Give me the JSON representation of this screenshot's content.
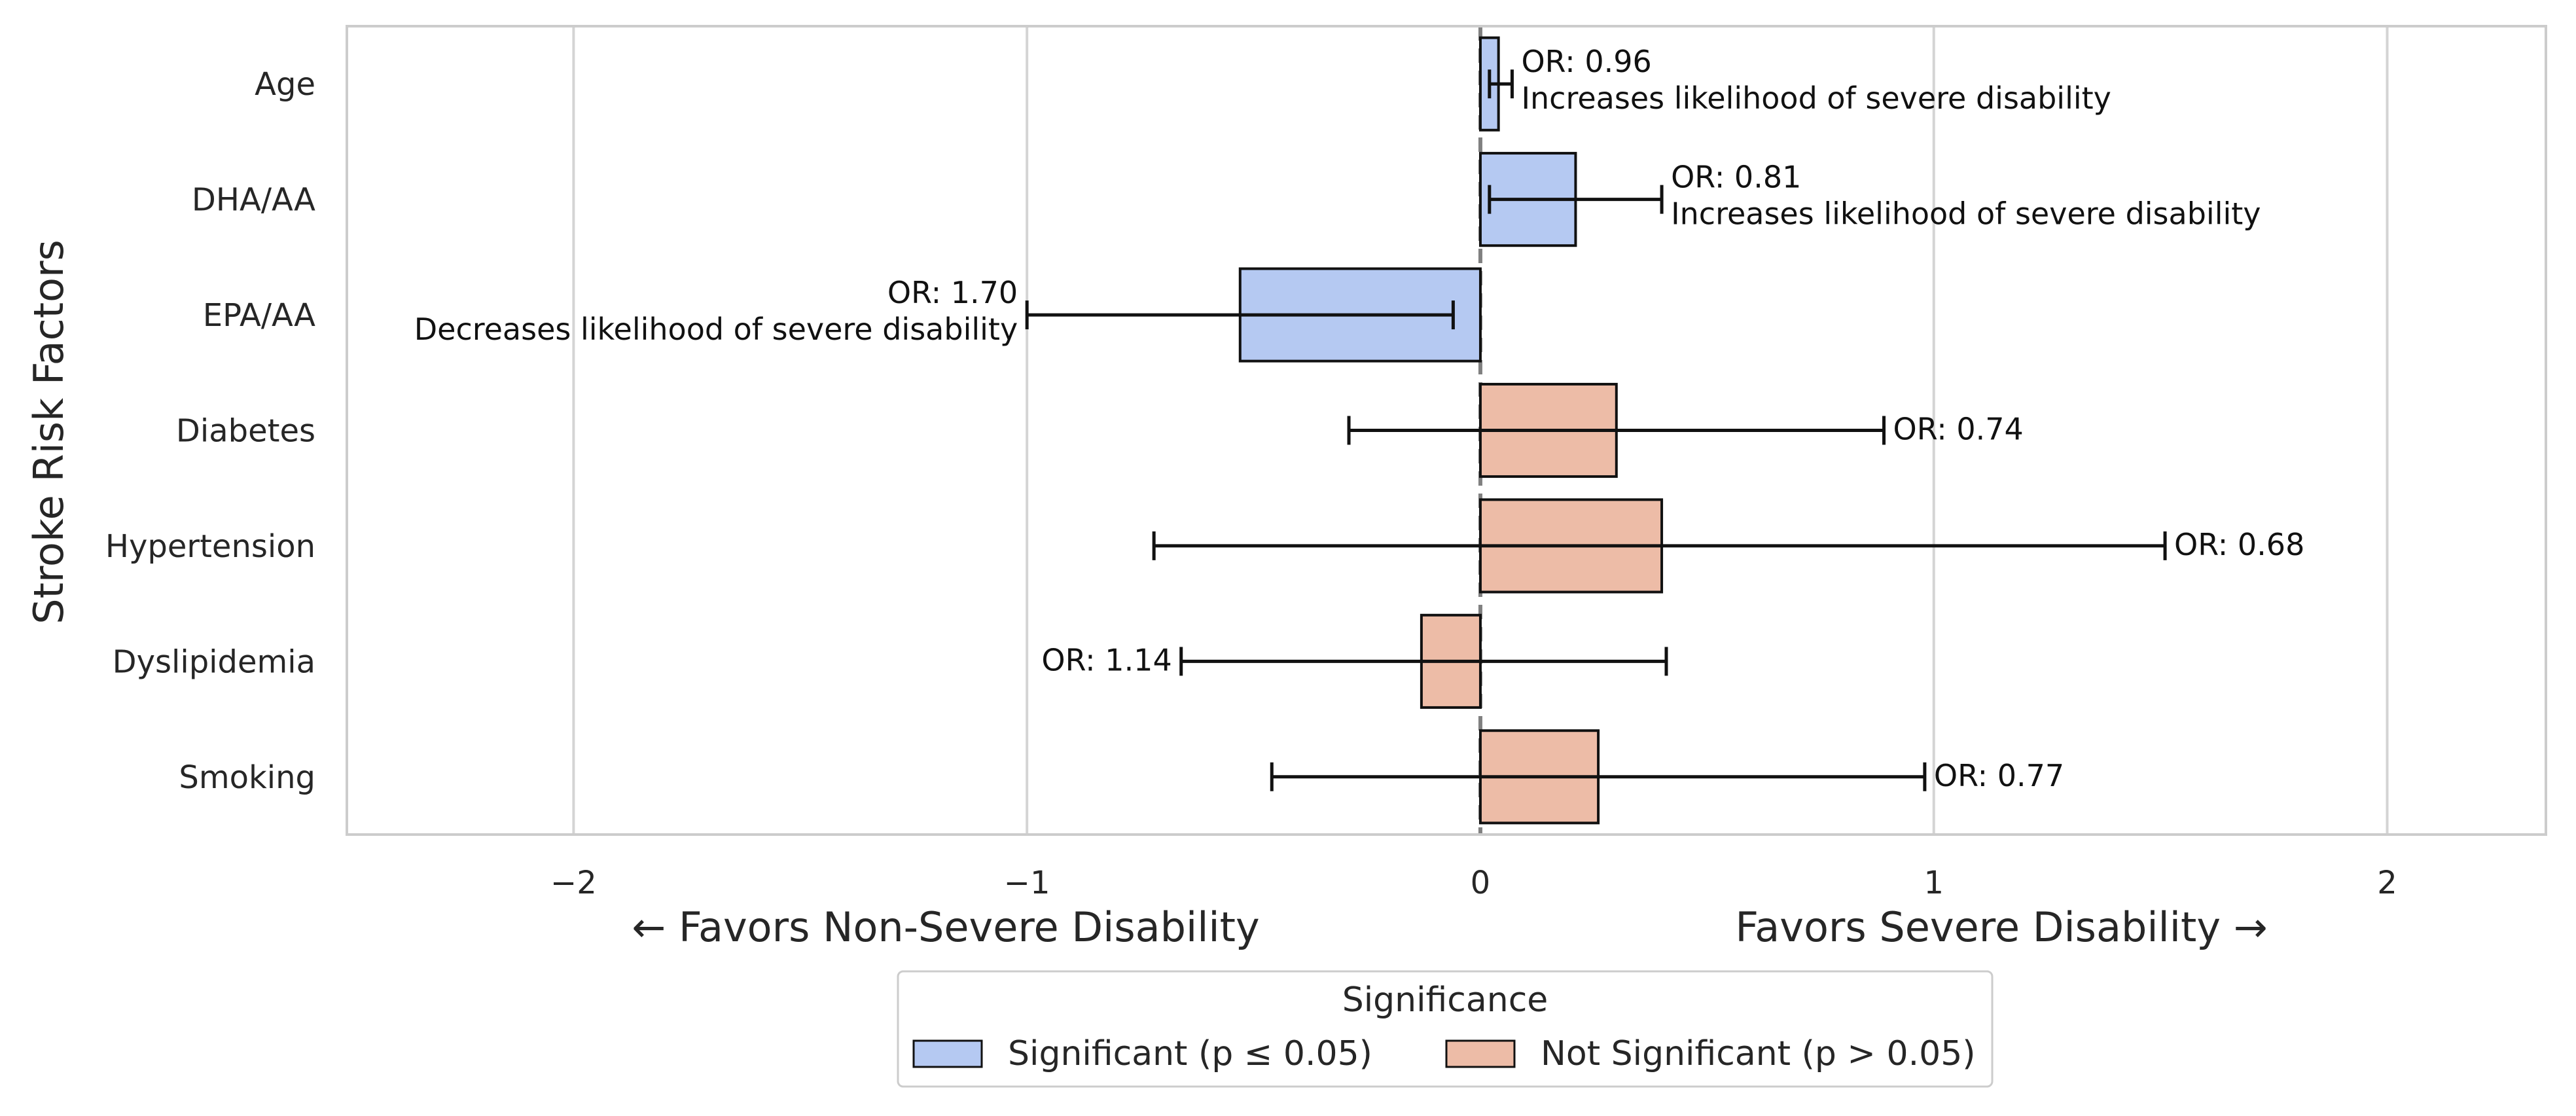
{
  "chart_data": {
    "type": "bar",
    "orientation": "horizontal",
    "ylabel": "Stroke Risk Factors",
    "xlabel_left": "← Favors Non-Severe Disability",
    "xlabel_right": "Favors Severe Disability →",
    "xlim": [
      -2.5,
      2.35
    ],
    "xticks": [
      -2,
      -1,
      0,
      1,
      2
    ],
    "xtick_labels": [
      "−2",
      "−1",
      "0",
      "1",
      "2"
    ],
    "grid": "vertical",
    "reference_line": 0,
    "categories": [
      "Age",
      "DHA/AA",
      "EPA/AA",
      "Diabetes",
      "Hypertension",
      "Dyslipidemia",
      "Smoking"
    ],
    "values": [
      0.04,
      0.21,
      -0.53,
      0.3,
      0.4,
      -0.13,
      0.26
    ],
    "ci_low": [
      0.02,
      0.02,
      -1.0,
      -0.29,
      -0.72,
      -0.66,
      -0.46
    ],
    "ci_high": [
      0.07,
      0.4,
      -0.06,
      0.89,
      1.51,
      0.41,
      0.98
    ],
    "significance": [
      "significant",
      "significant",
      "significant",
      "not_significant",
      "not_significant",
      "not_significant",
      "not_significant"
    ],
    "annotations": [
      {
        "or": "OR: 0.96",
        "note": "Increases likelihood of severe disability"
      },
      {
        "or": "OR: 0.81",
        "note": "Increases likelihood of severe disability"
      },
      {
        "or": "OR: 1.70",
        "note": "Decreases likelihood of severe disability"
      },
      {
        "or": "OR: 0.74",
        "note": ""
      },
      {
        "or": "OR: 0.68",
        "note": ""
      },
      {
        "or": "OR: 1.14",
        "note": ""
      },
      {
        "or": "OR: 0.77",
        "note": ""
      }
    ],
    "colors": {
      "significant": "#b5c9f2",
      "not_significant": "#edbca7",
      "edge": "#111111",
      "grid": "#d4d4d4",
      "zero_line": "#808080"
    },
    "legend": {
      "title": "Significance",
      "placement": "bottom-center",
      "items": [
        {
          "key": "significant",
          "label": "Significant (p ≤ 0.05)"
        },
        {
          "key": "not_significant",
          "label": "Not Significant (p > 0.05)"
        }
      ]
    }
  }
}
